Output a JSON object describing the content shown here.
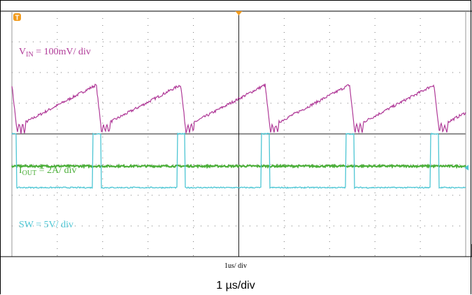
{
  "chart_data": {
    "type": "line",
    "title": "",
    "xlabel": "1us/ div",
    "caption": "1 µs/div",
    "time_per_div_us": 1,
    "grid": true,
    "grid_divisions": {
      "x": 10,
      "y": 8
    },
    "trigger_marker": "T",
    "series": [
      {
        "name": "VIN",
        "label_main": "V",
        "label_sub": "IN",
        "label_rest": " = 100mV/ div",
        "color": "#b03a98",
        "waveform": "sawtooth ripple",
        "period_div": 1.86,
        "peak_div": 1.6,
        "trough_div": 0.0
      },
      {
        "name": "IOUT",
        "label_main": "I",
        "label_sub": "OUT",
        "label_rest": " = 2A/ div",
        "color": "#4caf3a",
        "waveform": "flat with noise",
        "level_div": -1.05
      },
      {
        "name": "SW",
        "label_main": "SW",
        "label_sub": "",
        "label_rest": " = 5V/ div",
        "color": "#4ec6d4",
        "waveform": "pulse",
        "period_div": 1.86,
        "pulse_width_div": 0.18,
        "high_div": 0.0,
        "low_div": -1.75
      }
    ]
  }
}
